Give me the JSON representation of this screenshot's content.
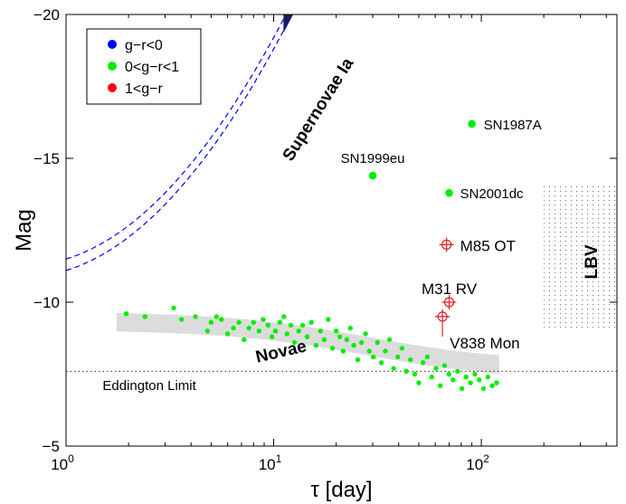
{
  "chart_data": {
    "type": "scatter",
    "xscale": "log",
    "xlabel": "τ [day]",
    "ylabel": "Mag",
    "xlim": [
      1,
      450
    ],
    "ylim": [
      -5,
      -20
    ],
    "x_tick_labels": [
      {
        "value": 1,
        "base": "10",
        "exp": "0"
      },
      {
        "value": 10,
        "base": "10",
        "exp": "1"
      },
      {
        "value": 100,
        "base": "10",
        "exp": "2"
      }
    ],
    "y_ticks": [
      {
        "value": -5,
        "label": "−5"
      },
      {
        "value": -10,
        "label": "−10"
      },
      {
        "value": -15,
        "label": "−15"
      },
      {
        "value": -20,
        "label": "−20"
      }
    ],
    "legend": [
      {
        "label": "g−r<0",
        "color": "#0000ff"
      },
      {
        "label": "0<g−r<1",
        "color": "#00ee00"
      },
      {
        "label": "1<g−r",
        "color": "#ff0000"
      }
    ],
    "colors": {
      "blue": "#0000ff",
      "green": "#00ee00",
      "red": "#dd2222",
      "navy": "#1e1e4e",
      "band": "#dcdcdc"
    },
    "named_objects": [
      {
        "label": "SN1987A",
        "tau": 90,
        "mag": -16.2,
        "type": "green"
      },
      {
        "label": "SN1999eu",
        "tau": 30,
        "mag": -14.4,
        "type": "green"
      },
      {
        "label": "SN2001dc",
        "tau": 70,
        "mag": -13.8,
        "type": "green"
      },
      {
        "label": "M85 OT",
        "tau": 68,
        "mag": -12.0,
        "type": "red"
      },
      {
        "label": "M31 RV",
        "tau": 70,
        "mag": -10.0,
        "type": "red"
      },
      {
        "label": "V838 Mon",
        "tau": 65,
        "mag": -9.5,
        "type": "red"
      }
    ],
    "region_labels": {
      "novae": "Novae",
      "supernovae": "Supernovae Ia",
      "lbv": "LBV",
      "eddington": "Eddington Limit"
    },
    "eddington_limit_mag": -7.6,
    "novae_points": [
      {
        "tau": 1.95,
        "mag": -9.6
      },
      {
        "tau": 2.4,
        "mag": -9.5
      },
      {
        "tau": 3.3,
        "mag": -9.8
      },
      {
        "tau": 3.6,
        "mag": -9.4
      },
      {
        "tau": 4.2,
        "mag": -9.5
      },
      {
        "tau": 4.8,
        "mag": -9.0
      },
      {
        "tau": 5.0,
        "mag": -9.3
      },
      {
        "tau": 5.3,
        "mag": -9.5
      },
      {
        "tau": 5.6,
        "mag": -9.4
      },
      {
        "tau": 6.0,
        "mag": -8.9
      },
      {
        "tau": 6.4,
        "mag": -9.1
      },
      {
        "tau": 6.8,
        "mag": -9.3
      },
      {
        "tau": 7.2,
        "mag": -8.7
      },
      {
        "tau": 7.6,
        "mag": -9.1
      },
      {
        "tau": 8.0,
        "mag": -9.3
      },
      {
        "tau": 8.5,
        "mag": -9.0
      },
      {
        "tau": 8.9,
        "mag": -9.4
      },
      {
        "tau": 9.4,
        "mag": -9.2
      },
      {
        "tau": 9.8,
        "mag": -8.8
      },
      {
        "tau": 10.2,
        "mag": -9.0
      },
      {
        "tau": 10.7,
        "mag": -9.3
      },
      {
        "tau": 11.2,
        "mag": -9.5
      },
      {
        "tau": 11.6,
        "mag": -8.9
      },
      {
        "tau": 12.1,
        "mag": -9.2
      },
      {
        "tau": 12.6,
        "mag": -8.6
      },
      {
        "tau": 13.2,
        "mag": -9.0
      },
      {
        "tau": 13.8,
        "mag": -9.2
      },
      {
        "tau": 14.5,
        "mag": -8.8
      },
      {
        "tau": 15.2,
        "mag": -9.3
      },
      {
        "tau": 16.0,
        "mag": -8.5
      },
      {
        "tau": 16.8,
        "mag": -9.0
      },
      {
        "tau": 17.5,
        "mag": -8.7
      },
      {
        "tau": 18.3,
        "mag": -9.4
      },
      {
        "tau": 19.2,
        "mag": -8.4
      },
      {
        "tau": 20.0,
        "mag": -9.0
      },
      {
        "tau": 20.8,
        "mag": -8.8
      },
      {
        "tau": 21.6,
        "mag": -8.3
      },
      {
        "tau": 22.5,
        "mag": -8.7
      },
      {
        "tau": 23.4,
        "mag": -9.1
      },
      {
        "tau": 24.3,
        "mag": -8.5
      },
      {
        "tau": 25.4,
        "mag": -8.0
      },
      {
        "tau": 26.5,
        "mag": -8.6
      },
      {
        "tau": 27.7,
        "mag": -8.9
      },
      {
        "tau": 28.9,
        "mag": -8.3
      },
      {
        "tau": 30.2,
        "mag": -8.1
      },
      {
        "tau": 31.6,
        "mag": -8.6
      },
      {
        "tau": 33.0,
        "mag": -7.9
      },
      {
        "tau": 34.5,
        "mag": -8.3
      },
      {
        "tau": 36.1,
        "mag": -8.7
      },
      {
        "tau": 37.8,
        "mag": -7.7
      },
      {
        "tau": 39.6,
        "mag": -8.1
      },
      {
        "tau": 41.5,
        "mag": -8.4
      },
      {
        "tau": 43.5,
        "mag": -7.6
      },
      {
        "tau": 45.6,
        "mag": -8.0
      },
      {
        "tau": 47.8,
        "mag": -7.5
      },
      {
        "tau": 50.0,
        "mag": -7.2
      },
      {
        "tau": 52.4,
        "mag": -7.9
      },
      {
        "tau": 55.0,
        "mag": -8.1
      },
      {
        "tau": 57.7,
        "mag": -7.4
      },
      {
        "tau": 60.5,
        "mag": -7.7
      },
      {
        "tau": 63.4,
        "mag": -7.1
      },
      {
        "tau": 66.5,
        "mag": -7.8
      },
      {
        "tau": 69.8,
        "mag": -7.5
      },
      {
        "tau": 73.2,
        "mag": -7.3
      },
      {
        "tau": 76.8,
        "mag": -7.6
      },
      {
        "tau": 80.6,
        "mag": -7.0
      },
      {
        "tau": 84.5,
        "mag": -7.4
      },
      {
        "tau": 88.7,
        "mag": -7.2
      },
      {
        "tau": 93.1,
        "mag": -7.5
      },
      {
        "tau": 97.7,
        "mag": -7.3
      },
      {
        "tau": 102.5,
        "mag": -7.0
      },
      {
        "tau": 107.6,
        "mag": -7.4
      },
      {
        "tau": 112.9,
        "mag": -7.1
      },
      {
        "tau": 118.5,
        "mag": -7.2
      }
    ]
  }
}
